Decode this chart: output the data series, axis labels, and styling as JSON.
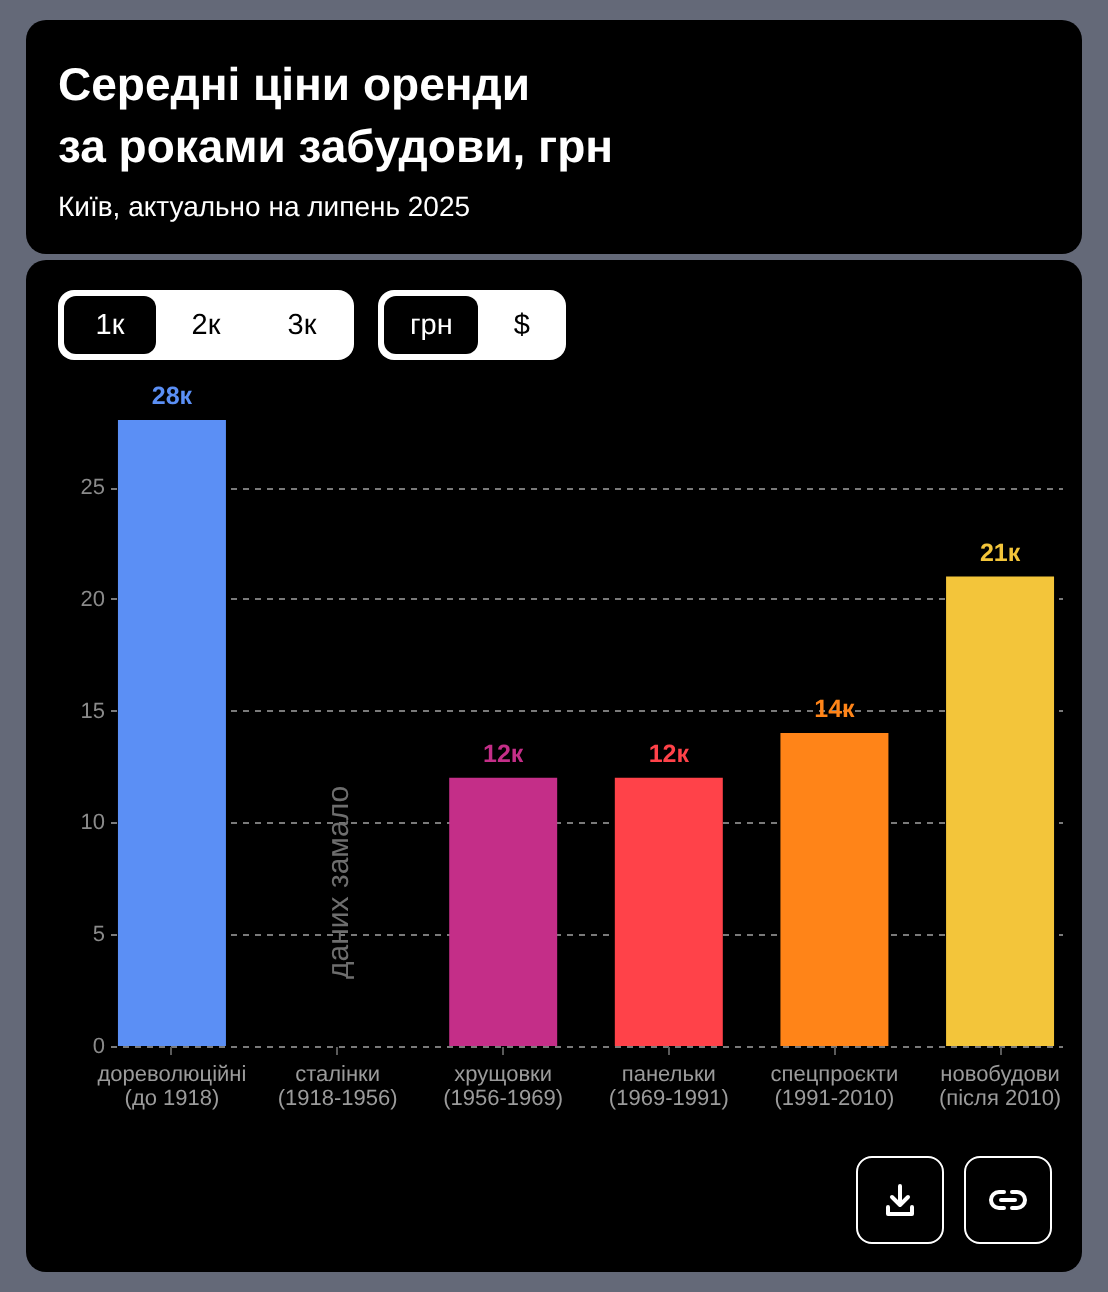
{
  "chart_data": {
    "type": "bar",
    "title": "Середні ціни оренди\nза роками забудови, грн",
    "subtitle": "Київ, актуально на липень 2025",
    "categories": [
      "дореволюційні (до 1918)",
      "сталінки (1918-1956)",
      "хрущовки (1956-1969)",
      "панельки (1969-1991)",
      "спецпроєкти (1991-2010)",
      "новобудови (після 2010)"
    ],
    "values": [
      28,
      null,
      12,
      12,
      14,
      21
    ],
    "colors": [
      "#5b8ff5",
      null,
      "#c42e88",
      "#ff4249",
      "#ff8418",
      "#f3c53a"
    ],
    "value_labels": [
      "28к",
      null,
      "12к",
      "12к",
      "14к",
      "21к"
    ],
    "ylim": [
      0,
      28
    ],
    "yticks": [
      0,
      5,
      10,
      15,
      20,
      25
    ],
    "grid": "y",
    "annotations": [
      "1к",
      "2к",
      "3к",
      "грн",
      "$",
      "даних замало"
    ]
  }
}
